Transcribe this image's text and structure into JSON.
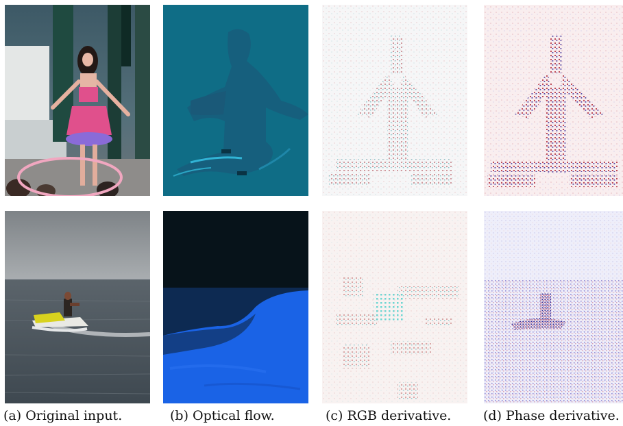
{
  "figure": {
    "captions": [
      "(a) Original input.",
      "(b) Optical flow.",
      "(c) RGB derivative.",
      "(d) Phase derivative."
    ]
  },
  "rows": [
    {
      "name": "hula-hoop-row",
      "cells": [
        {
          "name": "original-input",
          "depicts": "girl hula hooping in pink outfit"
        },
        {
          "name": "optical-flow",
          "depicts": "teal flow field with dancer silhouette"
        },
        {
          "name": "rgb-derivative",
          "depicts": "faint red and cyan noise pattern"
        },
        {
          "name": "phase-derivative",
          "depicts": "pink and blue noise pattern"
        }
      ]
    },
    {
      "name": "jet-ski-row",
      "cells": [
        {
          "name": "original-input",
          "depicts": "person riding jet ski on sea"
        },
        {
          "name": "optical-flow",
          "depicts": "dark top and bright blue water"
        },
        {
          "name": "rgb-derivative",
          "depicts": "faint red and cyan blocky noise"
        },
        {
          "name": "phase-derivative",
          "depicts": "purple noise with jet ski outline"
        }
      ]
    }
  ],
  "colors": {
    "flow_teal": "#0f6d86",
    "flow_dark": "#07131a",
    "flow_blue": "#1a63e6",
    "sea": "#4b555d",
    "sky": "#9a9fa3",
    "pink_outfit": "#e0508c",
    "purple_skirt": "#8a6bd8"
  }
}
